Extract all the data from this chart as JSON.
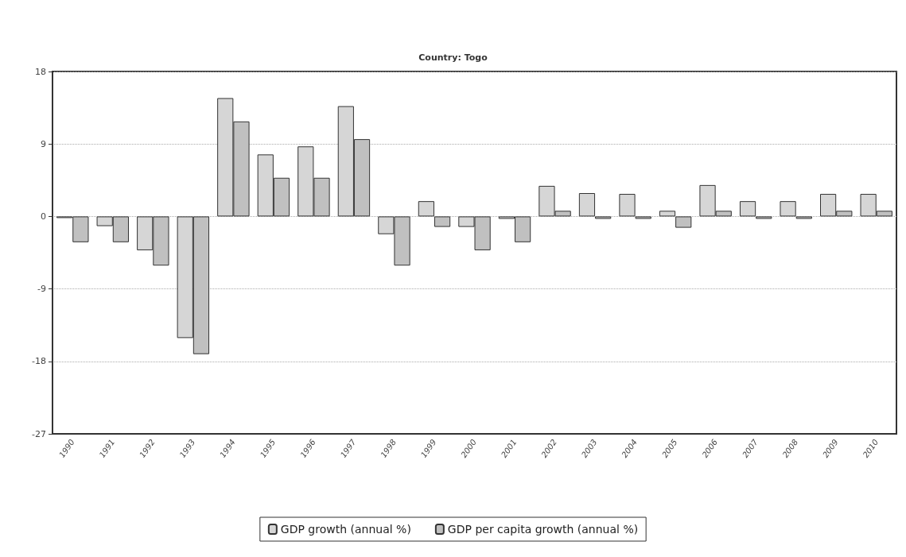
{
  "chart_data": {
    "type": "bar",
    "title": "Country: Togo",
    "categories": [
      "1990",
      "1991",
      "1992",
      "1993",
      "1994",
      "1995",
      "1996",
      "1997",
      "1998",
      "1999",
      "2000",
      "2001",
      "2002",
      "2003",
      "2004",
      "2005",
      "2006",
      "2007",
      "2008",
      "2009",
      "2010"
    ],
    "series": [
      {
        "name": "GDP growth (annual %)",
        "color": "#d6d6d6",
        "values": [
          -0.2,
          -1.2,
          -4.2,
          -15.1,
          14.7,
          7.7,
          8.7,
          13.7,
          -2.2,
          1.9,
          -1.3,
          -0.3,
          3.8,
          2.9,
          2.8,
          0.7,
          3.9,
          1.9,
          1.9,
          2.8,
          2.8
        ]
      },
      {
        "name": "GDP per capita growth (annual %)",
        "color": "#c0c0c0",
        "values": [
          -3.2,
          -3.2,
          -6.1,
          -17.1,
          11.8,
          4.8,
          4.8,
          9.6,
          -6.1,
          -1.3,
          -4.2,
          -3.2,
          0.7,
          -0.3,
          -0.3,
          -1.4,
          0.7,
          -0.3,
          -0.3,
          0.7,
          0.7
        ]
      }
    ],
    "ylim": [
      -27,
      18
    ],
    "yticks": [
      -27,
      -18,
      -9,
      0,
      9,
      18
    ],
    "grid": "y",
    "legend": "bottom"
  }
}
